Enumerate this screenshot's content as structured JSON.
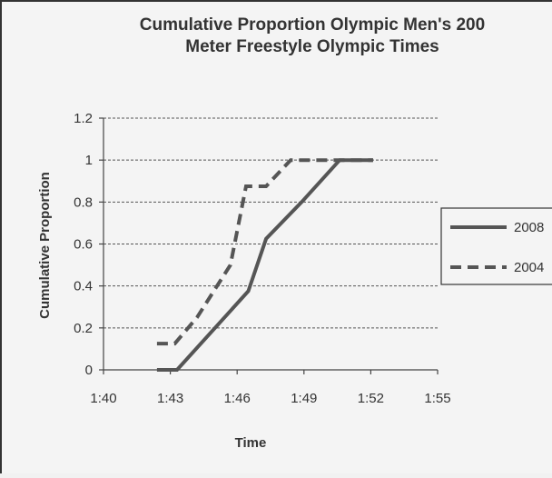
{
  "chart_data": {
    "type": "line",
    "title_lines": [
      "Cumulative Proportion Olympic Men's 200",
      "Meter Freestyle Olympic Times"
    ],
    "xlabel": "Time",
    "ylabel": "Cumulative Proportion",
    "x_ticks": [
      {
        "value": 100,
        "label": "1:40"
      },
      {
        "value": 103,
        "label": "1:43"
      },
      {
        "value": 106,
        "label": "1:46"
      },
      {
        "value": 109,
        "label": "1:49"
      },
      {
        "value": 112,
        "label": "1:52"
      },
      {
        "value": 115,
        "label": "1:55"
      }
    ],
    "xlim": [
      100,
      115
    ],
    "y_ticks": [
      {
        "value": 0,
        "label": "0"
      },
      {
        "value": 0.2,
        "label": "0.2"
      },
      {
        "value": 0.4,
        "label": "0.4"
      },
      {
        "value": 0.6,
        "label": "0.6"
      },
      {
        "value": 0.8,
        "label": "0.8"
      },
      {
        "value": 1,
        "label": "1"
      },
      {
        "value": 1.2,
        "label": "1.2"
      }
    ],
    "ylim": [
      0,
      1.2
    ],
    "grid": "horizontal dashed",
    "legend_position": "right",
    "series": [
      {
        "name": "2008",
        "style": "solid",
        "color": "#555555",
        "points": [
          [
            102.4,
            0
          ],
          [
            103.3,
            0
          ],
          [
            106.5,
            0.375
          ],
          [
            107.3,
            0.625
          ],
          [
            108.9,
            0.8
          ],
          [
            110.6,
            1
          ],
          [
            112.1,
            1
          ]
        ]
      },
      {
        "name": "2004",
        "style": "dashed",
        "color": "#555555",
        "points": [
          [
            102.4,
            0.125
          ],
          [
            103.2,
            0.125
          ],
          [
            104.2,
            0.25
          ],
          [
            105.7,
            0.5
          ],
          [
            106.4,
            0.875
          ],
          [
            107.3,
            0.875
          ],
          [
            108.4,
            1
          ],
          [
            112.1,
            1
          ]
        ]
      }
    ]
  }
}
